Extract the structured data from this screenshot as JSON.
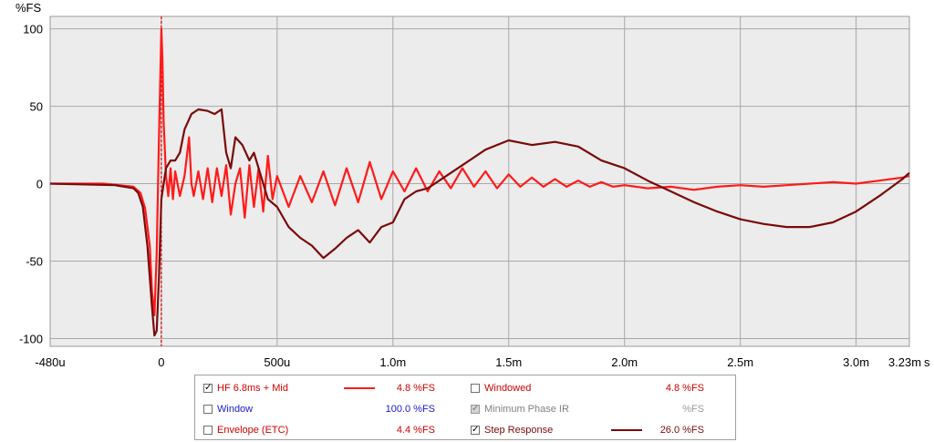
{
  "chart_data": {
    "type": "line",
    "ylabel": "%FS",
    "xunit": "s",
    "xlim": [
      -0.00048,
      0.00323
    ],
    "ylim": [
      -105,
      108
    ],
    "x_ticks": [
      {
        "v": -0.00048,
        "label": "-480u"
      },
      {
        "v": 0,
        "label": "0"
      },
      {
        "v": 0.0005,
        "label": "500u"
      },
      {
        "v": 0.001,
        "label": "1.0m"
      },
      {
        "v": 0.0015,
        "label": "1.5m"
      },
      {
        "v": 0.002,
        "label": "2.0m"
      },
      {
        "v": 0.0025,
        "label": "2.5m"
      },
      {
        "v": 0.003,
        "label": "3.0m"
      },
      {
        "v": 0.00323,
        "label": "3.23m"
      }
    ],
    "y_ticks": [
      100,
      50,
      0,
      -50,
      -100
    ],
    "grid": true,
    "marker_x": 0,
    "series": [
      {
        "name": "HF 6.8ms + Mid",
        "color": "#ff1a1a",
        "x": [
          -0.00048,
          -0.00035,
          -0.00025,
          -0.00012,
          -9e-05,
          -7e-05,
          -5e-05,
          -4e-05,
          -3e-05,
          -2e-05,
          -1e-05,
          0,
          5e-06,
          1e-05,
          2e-05,
          3e-05,
          4e-05,
          5e-05,
          6e-05,
          8e-05,
          0.0001,
          0.00012,
          0.00013,
          0.00014,
          0.00016,
          0.00018,
          0.0002,
          0.00022,
          0.00024,
          0.00026,
          0.00028,
          0.0003,
          0.00032,
          0.00034,
          0.00036,
          0.00038,
          0.0004,
          0.00042,
          0.00044,
          0.00046,
          0.00048,
          0.0005,
          0.00055,
          0.0006,
          0.00065,
          0.0007,
          0.00075,
          0.0008,
          0.00085,
          0.0009,
          0.00095,
          0.001,
          0.00105,
          0.0011,
          0.00115,
          0.0012,
          0.00125,
          0.0013,
          0.00135,
          0.0014,
          0.00145,
          0.0015,
          0.00155,
          0.0016,
          0.00165,
          0.0017,
          0.00175,
          0.0018,
          0.00185,
          0.0019,
          0.00195,
          0.002,
          0.0021,
          0.0022,
          0.0023,
          0.0024,
          0.0025,
          0.0026,
          0.0027,
          0.0028,
          0.0029,
          0.003,
          0.0031,
          0.0032,
          0.00323
        ],
        "y": [
          0,
          0,
          0,
          -2,
          -6,
          -16,
          -40,
          -70,
          -85,
          -45,
          30,
          100,
          80,
          40,
          5,
          -8,
          10,
          -10,
          8,
          -8,
          5,
          30,
          0,
          -8,
          8,
          -10,
          10,
          -12,
          10,
          -8,
          12,
          -20,
          0,
          10,
          -22,
          12,
          -15,
          10,
          -18,
          18,
          -10,
          5,
          -15,
          5,
          -12,
          8,
          -14,
          10,
          -12,
          14,
          -10,
          8,
          -5,
          10,
          -5,
          8,
          -3,
          10,
          -2,
          8,
          -3,
          6,
          -2,
          4,
          -2,
          3,
          -2,
          2,
          -2,
          1,
          -2,
          -1,
          -3,
          -2,
          -4,
          -2,
          -1,
          -2,
          -1,
          0,
          1,
          0,
          2,
          4,
          5
        ]
      },
      {
        "name": "Step Response",
        "color": "#7a0a0a",
        "x": [
          -0.00048,
          -0.0002,
          -0.00012,
          -0.0001,
          -8e-05,
          -6e-05,
          -4e-05,
          -3e-05,
          -2e-05,
          -1e-05,
          0,
          2e-05,
          4e-05,
          6e-05,
          8e-05,
          0.0001,
          0.00013,
          0.00016,
          0.0002,
          0.00023,
          0.00026,
          0.00028,
          0.0003,
          0.00032,
          0.00035,
          0.00038,
          0.0004,
          0.00043,
          0.00046,
          0.0005,
          0.00055,
          0.0006,
          0.00065,
          0.0007,
          0.00075,
          0.0008,
          0.00085,
          0.0009,
          0.00095,
          0.001,
          0.00105,
          0.0011,
          0.00115,
          0.0012,
          0.0013,
          0.0014,
          0.0015,
          0.0016,
          0.0017,
          0.0018,
          0.0019,
          0.002,
          0.0021,
          0.0022,
          0.0023,
          0.0024,
          0.0025,
          0.0026,
          0.0027,
          0.0028,
          0.0029,
          0.003,
          0.0031,
          0.0032,
          0.00323
        ],
        "y": [
          0,
          -1,
          -3,
          -6,
          -15,
          -40,
          -80,
          -98,
          -95,
          -60,
          -10,
          10,
          15,
          15,
          20,
          35,
          45,
          48,
          47,
          45,
          48,
          20,
          10,
          30,
          25,
          15,
          20,
          5,
          -10,
          -15,
          -28,
          -35,
          -40,
          -48,
          -42,
          -35,
          -30,
          -38,
          -28,
          -25,
          -10,
          -5,
          -3,
          2,
          12,
          22,
          28,
          25,
          27,
          24,
          15,
          10,
          2,
          -5,
          -12,
          -18,
          -23,
          -26,
          -28,
          -28,
          -25,
          -18,
          -8,
          3,
          7
        ]
      }
    ],
    "legend": [
      {
        "key": "hf",
        "label": "HF 6.8ms + Mid",
        "checked": true,
        "disabled": false,
        "color": "#cc0000",
        "swatch": "#ff1a1a",
        "value": "4.8 %FS",
        "value_color": "#cc0000"
      },
      {
        "key": "window",
        "label": "Window",
        "checked": false,
        "disabled": false,
        "color": "#1a1acc",
        "value": "100.0 %FS",
        "value_color": "#1a1acc"
      },
      {
        "key": "envelope",
        "label": "Envelope (ETC)",
        "checked": false,
        "disabled": false,
        "color": "#cc0000",
        "value": "4.4 %FS",
        "value_color": "#cc0000"
      },
      {
        "key": "windowed",
        "label": "Windowed",
        "checked": false,
        "disabled": false,
        "color": "#cc0000",
        "value": "4.8 %FS",
        "value_color": "#cc0000"
      },
      {
        "key": "minphase",
        "label": "Minimum Phase IR",
        "checked": true,
        "disabled": true,
        "color": "#808080",
        "value": "%FS",
        "value_color": "#9a9a9a"
      },
      {
        "key": "step",
        "label": "Step Response",
        "checked": true,
        "disabled": false,
        "color": "#7a0a0a",
        "swatch": "#7a0a0a",
        "value": "26.0 %FS",
        "value_color": "#7a0a0a"
      }
    ]
  }
}
